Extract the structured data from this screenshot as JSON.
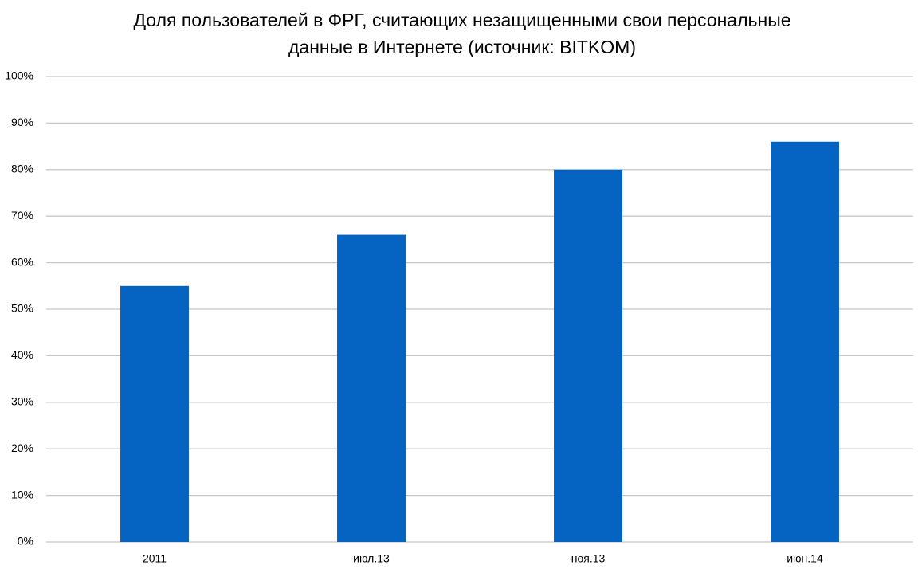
{
  "chart_data": {
    "type": "bar",
    "title": "Доля пользователей в ФРГ, считающих незащищенными свои персональные данные в Интернете (источник: BITKOM)",
    "categories": [
      "2011",
      "июл.13",
      "ноя.13",
      "июн.14"
    ],
    "values": [
      55,
      66,
      80,
      86
    ],
    "color": "#0563c1",
    "ylim": [
      0,
      100
    ],
    "yticks": [
      {
        "value": 0,
        "label": "0%"
      },
      {
        "value": 10,
        "label": "10%"
      },
      {
        "value": 20,
        "label": "20%"
      },
      {
        "value": 30,
        "label": "30%"
      },
      {
        "value": 40,
        "label": "40%"
      },
      {
        "value": 50,
        "label": "50%"
      },
      {
        "value": 60,
        "label": "60%"
      },
      {
        "value": 70,
        "label": "70%"
      },
      {
        "value": 80,
        "label": "80%"
      },
      {
        "value": 90,
        "label": "90%"
      },
      {
        "value": 100,
        "label": "100%"
      }
    ],
    "grid": true
  }
}
